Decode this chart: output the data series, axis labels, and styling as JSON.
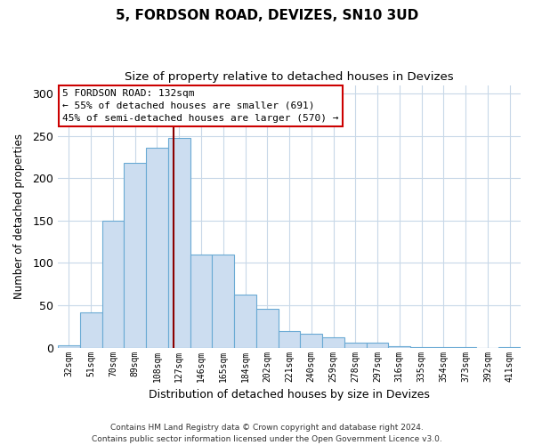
{
  "title": "5, FORDSON ROAD, DEVIZES, SN10 3UD",
  "subtitle": "Size of property relative to detached houses in Devizes",
  "xlabel": "Distribution of detached houses by size in Devizes",
  "ylabel": "Number of detached properties",
  "categories": [
    "32sqm",
    "51sqm",
    "70sqm",
    "89sqm",
    "108sqm",
    "127sqm",
    "146sqm",
    "165sqm",
    "184sqm",
    "202sqm",
    "221sqm",
    "240sqm",
    "259sqm",
    "278sqm",
    "297sqm",
    "316sqm",
    "335sqm",
    "354sqm",
    "373sqm",
    "392sqm",
    "411sqm"
  ],
  "values": [
    3,
    42,
    150,
    218,
    236,
    248,
    110,
    110,
    63,
    46,
    20,
    16,
    12,
    6,
    6,
    2,
    1,
    1,
    1,
    0,
    1
  ],
  "bar_color": "#ccddf0",
  "bar_edge_color": "#6aaad4",
  "vline_color": "#8b0000",
  "vline_x_index": 5,
  "annotation_title": "5 FORDSON ROAD: 132sqm",
  "annotation_line1": "← 55% of detached houses are smaller (691)",
  "annotation_line2": "45% of semi-detached houses are larger (570) →",
  "annotation_box_color": "#ffffff",
  "annotation_box_edge": "#cc0000",
  "ylim": [
    0,
    310
  ],
  "yticks": [
    0,
    50,
    100,
    150,
    200,
    250,
    300
  ],
  "footer_line1": "Contains HM Land Registry data © Crown copyright and database right 2024.",
  "footer_line2": "Contains public sector information licensed under the Open Government Licence v3.0.",
  "bg_color": "#ffffff",
  "grid_color": "#c8d8e8"
}
